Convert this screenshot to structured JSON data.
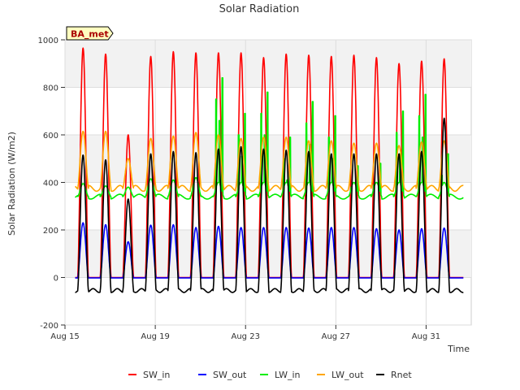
{
  "chart_data": {
    "type": "line",
    "title": "Solar Radiation",
    "xlabel": "Time",
    "ylabel": "Solar Radiation (W/m2)",
    "annotation": "BA_met",
    "xlim": [
      15,
      33
    ],
    "ylim": [
      -200,
      1000
    ],
    "yticks": [
      -200,
      0,
      200,
      400,
      600,
      800,
      1000
    ],
    "xticks": [
      {
        "value": 15,
        "label": "Aug 15"
      },
      {
        "value": 19,
        "label": "Aug 19"
      },
      {
        "value": 23,
        "label": "Aug 23"
      },
      {
        "value": 27,
        "label": "Aug 27"
      },
      {
        "value": 31,
        "label": "Aug 31"
      }
    ],
    "days": [
      15.8,
      16.8,
      17.8,
      18.8,
      19.8,
      20.8,
      21.8,
      22.8,
      23.8,
      24.8,
      25.8,
      26.8,
      27.8,
      28.8,
      29.8,
      30.8,
      31.8
    ],
    "series": [
      {
        "name": "SW_in",
        "color": "#ff0000",
        "daily_peak": [
          965,
          940,
          600,
          930,
          950,
          945,
          945,
          945,
          925,
          940,
          935,
          930,
          935,
          925,
          900,
          910,
          920
        ],
        "night_value": 0
      },
      {
        "name": "SW_out",
        "color": "#0000ff",
        "daily_peak": [
          230,
          222,
          150,
          220,
          222,
          210,
          215,
          210,
          210,
          210,
          208,
          210,
          210,
          205,
          200,
          205,
          208
        ],
        "night_value": -2
      },
      {
        "name": "LW_in",
        "color": "#00ee00",
        "daily_peak": [
          395,
          385,
          380,
          415,
          410,
          420,
          840,
          690,
          780,
          590,
          740,
          680,
          470,
          480,
          700,
          770,
          520
        ],
        "night_value": 340
      },
      {
        "name": "LW_out",
        "color": "#ffa500",
        "daily_peak": [
          615,
          615,
          500,
          585,
          595,
          610,
          600,
          585,
          590,
          590,
          575,
          575,
          565,
          565,
          555,
          570,
          575
        ],
        "night_value": 375
      },
      {
        "name": "Rnet",
        "color": "#000000",
        "daily_peak": [
          515,
          495,
          330,
          520,
          530,
          525,
          540,
          550,
          540,
          535,
          530,
          520,
          520,
          520,
          520,
          530,
          670
        ],
        "night_value": -55
      }
    ]
  }
}
